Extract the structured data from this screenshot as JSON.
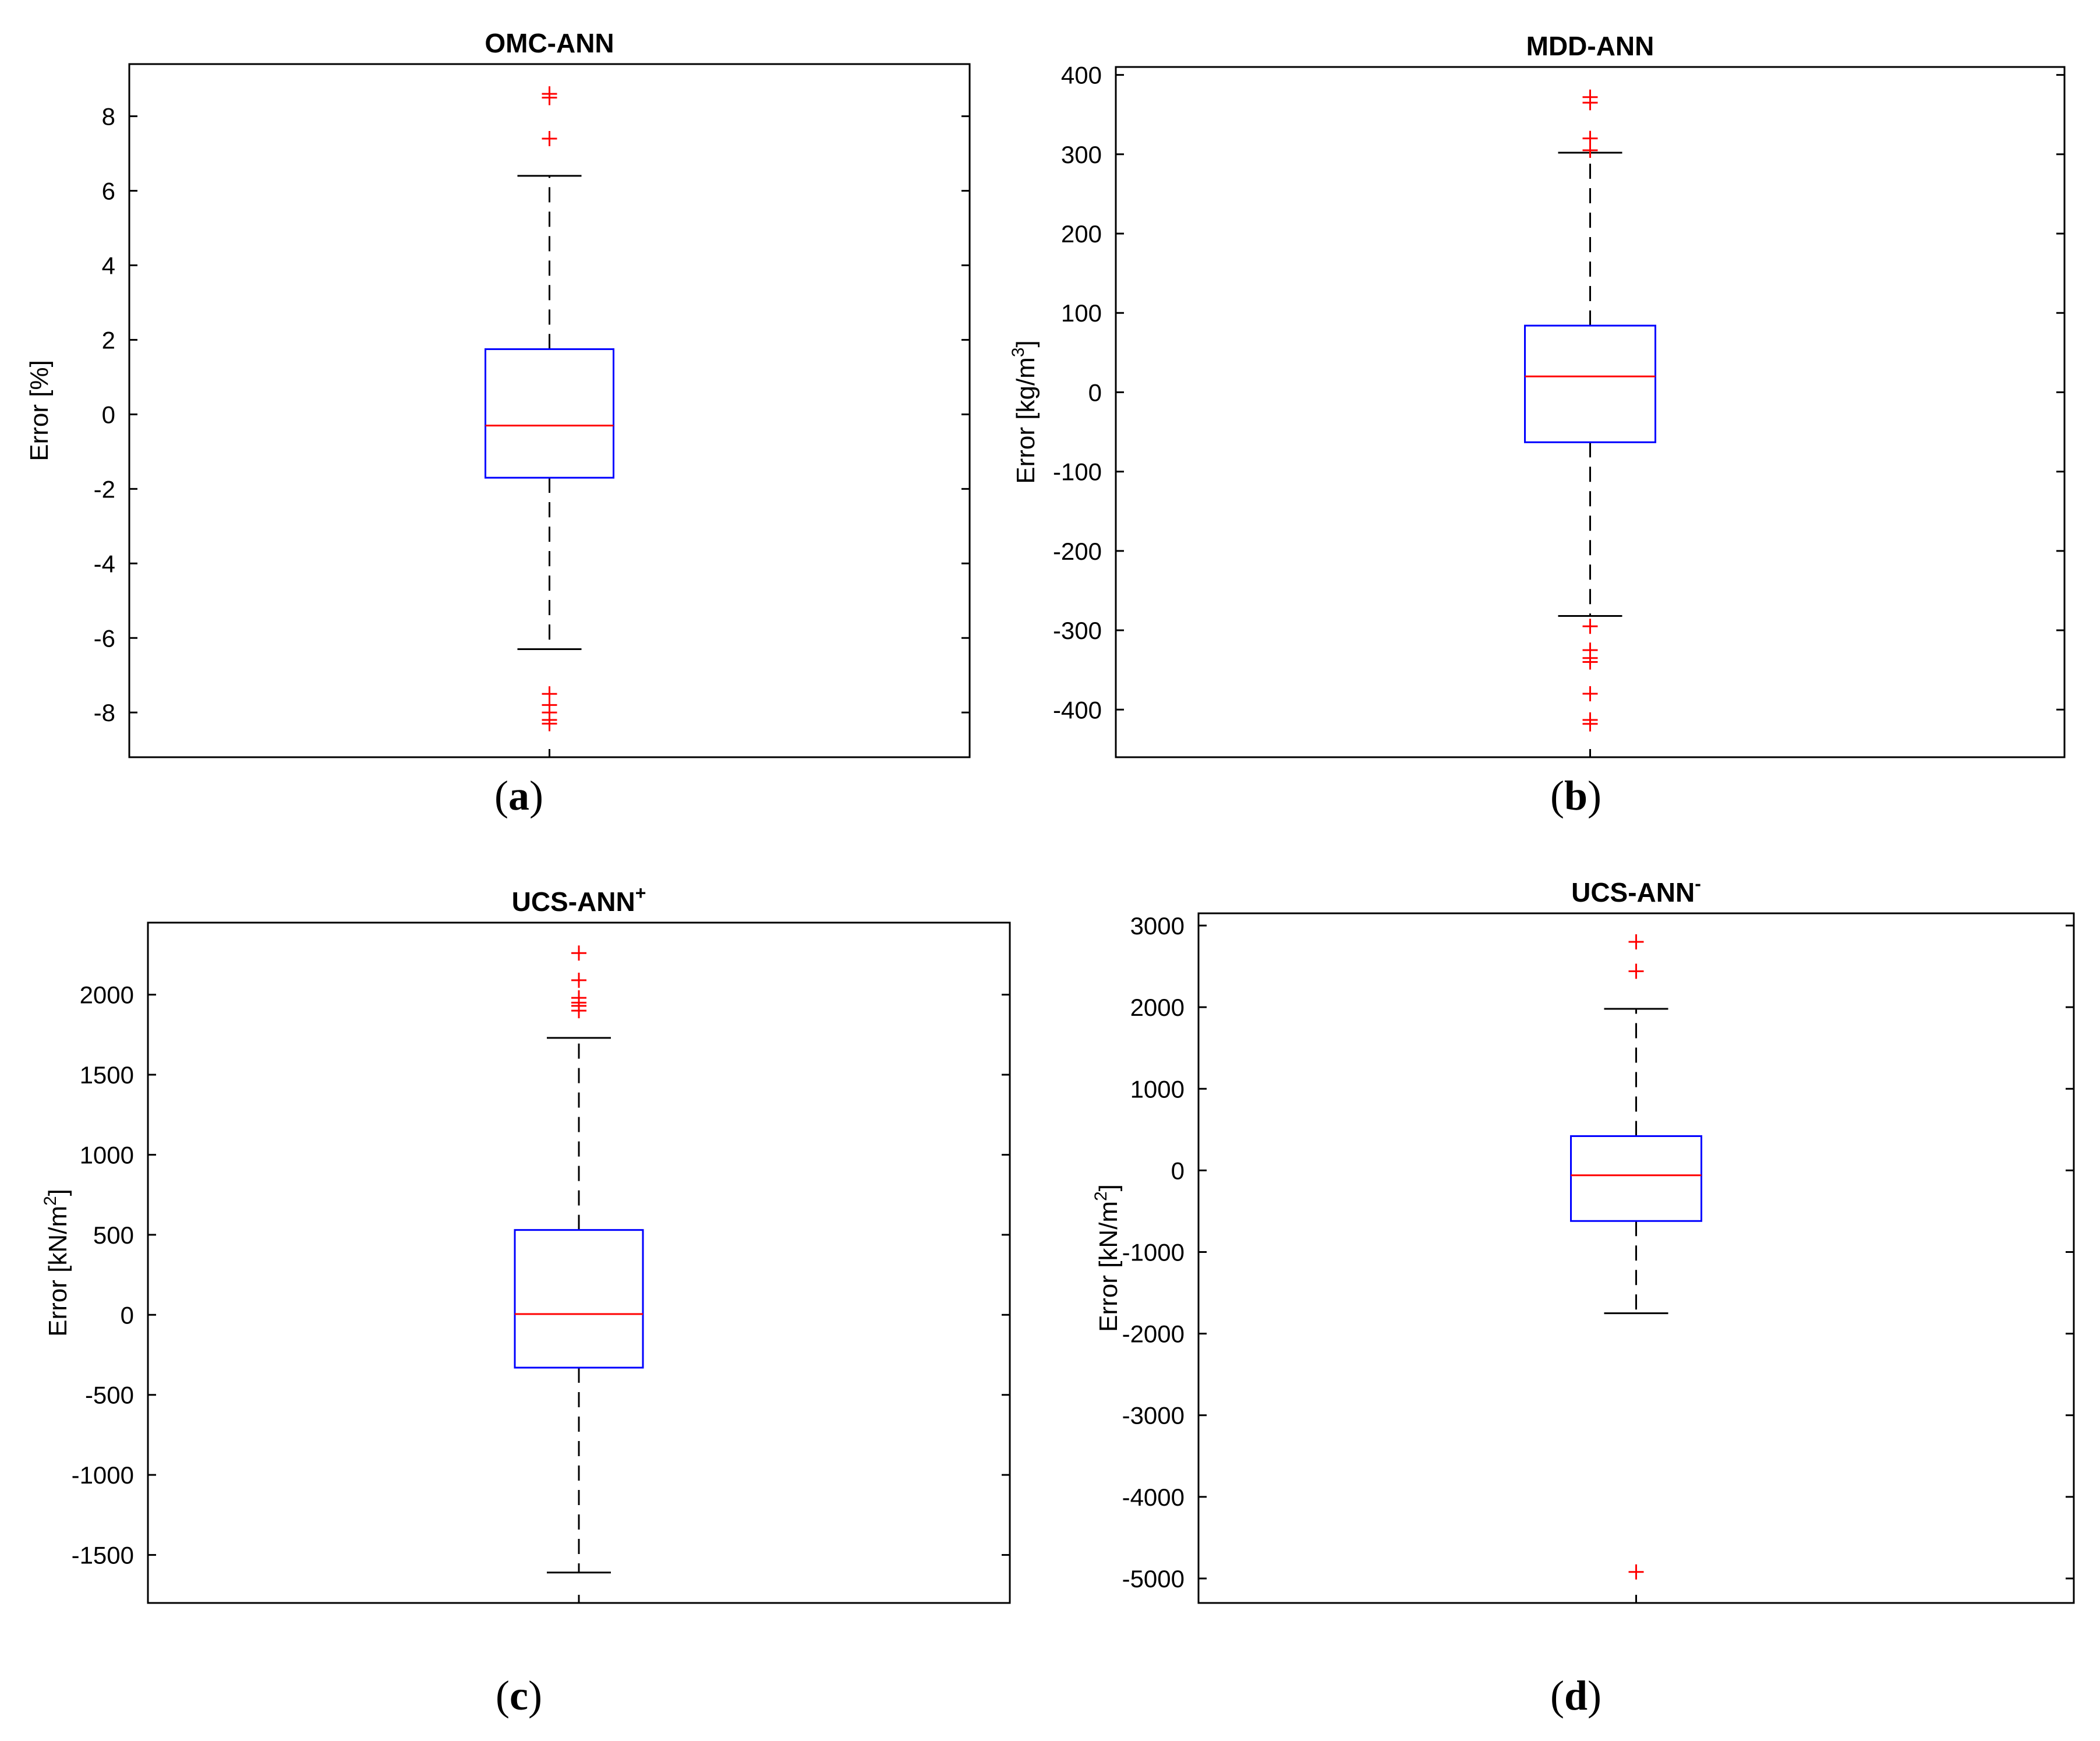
{
  "chart_data": [
    {
      "type": "box",
      "title": "OMC-ANN",
      "title_sup": "",
      "ylabel": "Error [%]",
      "ylabel_sup": "",
      "ylabel_tail": "",
      "ylim": [
        -9.2,
        9.4
      ],
      "yticks": [
        -8,
        -6,
        -4,
        -2,
        0,
        2,
        4,
        6,
        8
      ],
      "ytick_labels": [
        "-8",
        "-6",
        "-4",
        "-2",
        "0",
        "2",
        "4",
        "6",
        "8"
      ],
      "box": {
        "whisker_low": -6.3,
        "q1": -1.7,
        "median": -0.3,
        "q3": 1.75,
        "whisker_high": 6.4
      },
      "outliers": [
        8.6,
        8.5,
        7.4,
        -7.5,
        -7.8,
        -8.0,
        -8.2,
        -8.3
      ],
      "caption": "a"
    },
    {
      "type": "box",
      "title": "MDD-ANN",
      "title_sup": "",
      "ylabel": "Error [kg/m",
      "ylabel_sup": "3",
      "ylabel_tail": "]",
      "ylim": [
        -460,
        410
      ],
      "yticks": [
        -400,
        -300,
        -200,
        -100,
        0,
        100,
        200,
        300,
        400
      ],
      "ytick_labels": [
        "-400",
        "-300",
        "-200",
        "-100",
        "0",
        "100",
        "200",
        "300",
        "400"
      ],
      "box": {
        "whisker_low": -282,
        "q1": -63,
        "median": 20,
        "q3": 84,
        "whisker_high": 302
      },
      "outliers": [
        372,
        365,
        320,
        305,
        -295,
        -325,
        -335,
        -340,
        -380,
        -413,
        -418
      ],
      "caption": "b"
    },
    {
      "type": "box",
      "title": "UCS-ANN",
      "title_sup": "+",
      "ylabel": "Error [kN/m",
      "ylabel_sup": "2",
      "ylabel_tail": "]",
      "ylim": [
        -1800,
        2450
      ],
      "yticks": [
        -1500,
        -1000,
        -500,
        0,
        500,
        1000,
        1500,
        2000
      ],
      "ytick_labels": [
        "-1500",
        "-1000",
        "-500",
        "0",
        "500",
        "1000",
        "1500",
        "2000"
      ],
      "box": {
        "whisker_low": -1610,
        "q1": -330,
        "median": 5,
        "q3": 530,
        "whisker_high": 1730
      },
      "outliers": [
        2260,
        2090,
        1980,
        1950,
        1930,
        1900
      ],
      "caption": "c"
    },
    {
      "type": "box",
      "title": "UCS-ANN",
      "title_sup": "-",
      "ylabel": "Error [kN/m",
      "ylabel_sup": "2",
      "ylabel_tail": "]",
      "ylim": [
        -5300,
        3150
      ],
      "yticks": [
        -5000,
        -4000,
        -3000,
        -2000,
        -1000,
        0,
        1000,
        2000,
        3000
      ],
      "ytick_labels": [
        "-5000",
        "-4000",
        "-3000",
        "-2000",
        "-1000",
        "0",
        "1000",
        "2000",
        "3000"
      ],
      "box": {
        "whisker_low": -1750,
        "q1": -620,
        "median": -60,
        "q3": 420,
        "whisker_high": 1980
      },
      "outliers": [
        2800,
        2440,
        -4920
      ],
      "caption": "d"
    }
  ],
  "colors": {
    "box": "#0000ff",
    "median": "#ff0000",
    "outlier": "#ff0000",
    "whisker": "#000000",
    "axis": "#000000"
  }
}
